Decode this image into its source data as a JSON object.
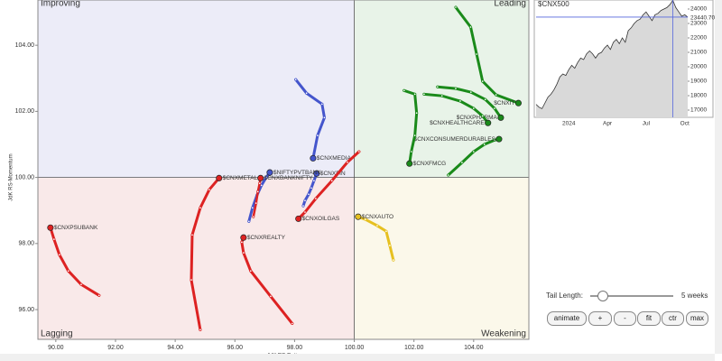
{
  "chart_data": [
    {
      "type": "rrg",
      "x_label": "JdK RS-Ratio",
      "y_label": "JdK RS-Momentum",
      "xlim": [
        89.4,
        105.85
      ],
      "ylim": [
        95.1,
        105.37
      ],
      "xticks": [
        {
          "value": 90,
          "label": "90.00"
        },
        {
          "value": 92,
          "label": "92.00"
        },
        {
          "value": 94,
          "label": "94.00"
        },
        {
          "value": 96,
          "label": "96.00"
        },
        {
          "value": 98,
          "label": "98.00"
        },
        {
          "value": 100,
          "label": "100.00"
        },
        {
          "value": 102,
          "label": "102.00"
        },
        {
          "value": 104,
          "label": "104.00"
        }
      ],
      "yticks": [
        {
          "value": 96,
          "label": "96.00"
        },
        {
          "value": 98,
          "label": "98.00"
        },
        {
          "value": 100,
          "label": "100.00"
        },
        {
          "value": 102,
          "label": "102.00"
        },
        {
          "value": 104,
          "label": "104.00"
        }
      ],
      "quadrant_center": [
        100,
        100
      ],
      "quadrants": [
        {
          "name": "Improving",
          "color": "#ececf8",
          "text_color": "#8a8ae0"
        },
        {
          "name": "Leading",
          "color": "#e8f3e8",
          "text_color": "#5aaa5a"
        },
        {
          "name": "Lagging",
          "color": "#f9e9e9",
          "text_color": "#e07070"
        },
        {
          "name": "Weakening",
          "color": "#fbf8ea",
          "text_color": "#d4a000"
        }
      ],
      "series": [
        {
          "name": "$CNXIT",
          "color": "#1a8a1a",
          "x": [
            103.4,
            103.9,
            104.1,
            104.3,
            104.75,
            105.5
          ],
          "values": [
            105.15,
            104.55,
            103.73,
            102.91,
            102.5,
            102.25
          ]
        },
        {
          "name": "$CNXPHARMA",
          "color": "#1a8a1a",
          "x": [
            102.79,
            103.4,
            103.91,
            104.39,
            104.7,
            104.91
          ],
          "values": [
            102.74,
            102.69,
            102.58,
            102.36,
            102.09,
            101.81
          ]
        },
        {
          "name": "$CNXHEALTHCARE",
          "color": "#1a8a1a",
          "x": [
            102.34,
            102.94,
            103.55,
            104.0,
            104.3,
            104.48
          ],
          "values": [
            102.52,
            102.47,
            102.31,
            102.09,
            101.86,
            101.65
          ]
        },
        {
          "name": "$CNXCONSUMERDURABLES",
          "color": "#1a8a1a",
          "x": [
            103.15,
            103.61,
            104.0,
            104.36,
            104.7,
            104.85
          ],
          "values": [
            100.07,
            100.45,
            100.78,
            101.0,
            101.13,
            101.16
          ]
        },
        {
          "name": "$CNXFMCG",
          "color": "#1a8a1a",
          "x": [
            101.67,
            102.03,
            102.09,
            102.03,
            101.91,
            101.85
          ],
          "values": [
            102.63,
            102.52,
            101.95,
            101.27,
            100.78,
            100.42
          ]
        },
        {
          "name": "$CNXMEDIA",
          "color": "#4455cc",
          "x": [
            98.04,
            98.4,
            98.92,
            99.0,
            98.77,
            98.62
          ],
          "values": [
            102.96,
            102.55,
            102.22,
            101.81,
            101.27,
            100.58
          ]
        },
        {
          "name": "$CNXFIN",
          "color": "#4455cc",
          "x": [
            98.29,
            98.35,
            98.47,
            98.56,
            98.65,
            98.74
          ],
          "values": [
            99.14,
            99.3,
            99.49,
            99.68,
            99.9,
            100.12
          ]
        },
        {
          "name": "$NIFTYPVTBANK",
          "color": "#4455cc",
          "x": [
            96.47,
            96.59,
            96.74,
            96.89,
            97.05,
            97.17
          ],
          "values": [
            98.67,
            99.08,
            99.46,
            99.76,
            100.0,
            100.15
          ]
        },
        {
          "name": "$CNXBANKNIFTY",
          "color": "#dd2222",
          "x": [
            96.62,
            96.71,
            96.77,
            96.83,
            96.86
          ],
          "values": [
            98.81,
            99.22,
            99.57,
            99.82,
            99.98
          ]
        },
        {
          "name": "$CNXMETAL",
          "color": "#dd2222",
          "x": [
            94.84,
            94.54,
            94.57,
            94.84,
            95.14,
            95.47
          ],
          "values": [
            95.39,
            96.9,
            98.26,
            99.08,
            99.63,
            99.98
          ]
        },
        {
          "name": "$CNXREALTY",
          "color": "#dd2222",
          "x": [
            97.92,
            97.2,
            96.53,
            96.29,
            96.23,
            96.29
          ],
          "values": [
            95.58,
            96.4,
            97.17,
            97.72,
            98.04,
            98.18
          ]
        },
        {
          "name": "$CNXOILGAS",
          "color": "#dd2222",
          "x": [
            100.16,
            99.77,
            99.25,
            98.71,
            98.35,
            98.13
          ],
          "values": [
            100.78,
            100.46,
            99.9,
            99.36,
            98.95,
            98.75
          ]
        },
        {
          "name": "$CNXPSUBANK",
          "color": "#dd2222",
          "x": [
            91.45,
            90.85,
            90.42,
            90.12,
            89.94,
            89.82
          ],
          "values": [
            96.43,
            96.76,
            97.17,
            97.66,
            98.13,
            98.48
          ]
        },
        {
          "name": "$CNXAUTO",
          "color": "#e6c020",
          "x": [
            101.31,
            101.19,
            101.07,
            100.77,
            100.37,
            100.13
          ],
          "values": [
            97.5,
            97.94,
            98.37,
            98.54,
            98.73,
            98.81
          ]
        }
      ]
    },
    {
      "type": "line",
      "title": "$CNX500",
      "color": "#333333",
      "fill": "#d9d9d9",
      "categories": [
        null,
        null,
        null,
        null,
        null,
        null,
        null,
        null,
        null,
        null,
        null,
        "2024",
        null,
        null,
        null,
        null,
        null,
        null,
        null,
        null,
        null,
        null,
        null,
        null,
        "Apr",
        null,
        null,
        null,
        null,
        null,
        null,
        null,
        null,
        null,
        null,
        null,
        null,
        "Jul",
        null,
        null,
        null,
        null,
        null,
        null,
        null,
        null,
        null,
        null,
        null,
        null,
        "Oct",
        null
      ],
      "values": [
        17400,
        17200,
        17100,
        17500,
        17900,
        18100,
        18400,
        18800,
        19300,
        19500,
        19400,
        19800,
        20100,
        19900,
        20300,
        20600,
        20500,
        20900,
        21100,
        20900,
        20600,
        20900,
        21000,
        21300,
        21500,
        21200,
        21700,
        21900,
        21600,
        22000,
        21700,
        22500,
        22700,
        23000,
        23200,
        23300,
        23600,
        23800,
        23500,
        23200,
        23600,
        23700,
        23900,
        24000,
        24100,
        24300,
        24600,
        24100,
        23800,
        23500,
        23600,
        23440.7
      ],
      "value_labels": [
        null,
        null,
        null,
        null,
        null,
        null,
        null,
        null,
        null,
        null,
        null,
        null,
        null,
        null,
        null,
        null,
        null,
        null,
        null,
        null,
        null,
        null,
        null,
        null,
        null,
        null,
        null,
        null,
        null,
        null,
        null,
        null,
        null,
        null,
        null,
        null,
        null,
        null,
        null,
        null,
        null,
        null,
        null,
        null,
        null,
        null,
        null,
        null,
        null,
        null,
        null,
        "23440.70"
      ],
      "ylim": [
        16500,
        24625
      ],
      "yticks": [
        17000,
        18000,
        19000,
        20000,
        21000,
        22000,
        23000,
        24000
      ]
    }
  ],
  "controls": {
    "tail_length_label": "Tail Length:",
    "tail_length_value": "5 weeks",
    "buttons": [
      "animate",
      "+",
      "-",
      "fit",
      "ctr",
      "max"
    ]
  }
}
